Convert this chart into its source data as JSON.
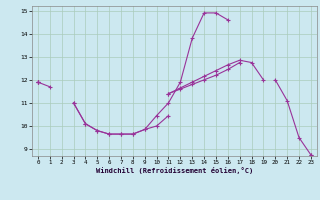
{
  "xlabel": "Windchill (Refroidissement éolien,°C)",
  "background_color": "#cce8f0",
  "grid_color": "#aaccbb",
  "line_color": "#993399",
  "x_hours": [
    0,
    1,
    2,
    3,
    4,
    5,
    6,
    7,
    8,
    9,
    10,
    11,
    12,
    13,
    14,
    15,
    16,
    17,
    18,
    19,
    20,
    21,
    22,
    23
  ],
  "line1": [
    11.9,
    11.7,
    null,
    11.0,
    10.1,
    9.8,
    9.65,
    9.65,
    9.65,
    9.85,
    10.0,
    10.45,
    null,
    null,
    null,
    null,
    null,
    null,
    null,
    null,
    12.0,
    11.1,
    9.5,
    8.75
  ],
  "line2": [
    11.9,
    null,
    null,
    11.0,
    10.1,
    9.8,
    9.65,
    9.65,
    9.65,
    9.85,
    10.45,
    11.0,
    11.9,
    13.8,
    14.9,
    14.9,
    14.6,
    null,
    null,
    null,
    null,
    null,
    null,
    null
  ],
  "line3": [
    11.9,
    null,
    null,
    null,
    null,
    null,
    null,
    null,
    null,
    null,
    null,
    11.4,
    11.65,
    11.9,
    12.15,
    12.4,
    12.65,
    12.85,
    12.75,
    12.0,
    null,
    null,
    null,
    null
  ],
  "line4": [
    11.9,
    null,
    null,
    null,
    null,
    null,
    null,
    null,
    null,
    null,
    null,
    11.4,
    11.6,
    11.8,
    12.0,
    12.2,
    12.45,
    12.75,
    null,
    null,
    null,
    null,
    null,
    8.75
  ],
  "ylim": [
    9,
    15
  ],
  "xlim": [
    0,
    23
  ],
  "yticks": [
    9,
    10,
    11,
    12,
    13,
    14,
    15
  ],
  "xticks": [
    0,
    1,
    2,
    3,
    4,
    5,
    6,
    7,
    8,
    9,
    10,
    11,
    12,
    13,
    14,
    15,
    16,
    17,
    18,
    19,
    20,
    21,
    22,
    23
  ]
}
